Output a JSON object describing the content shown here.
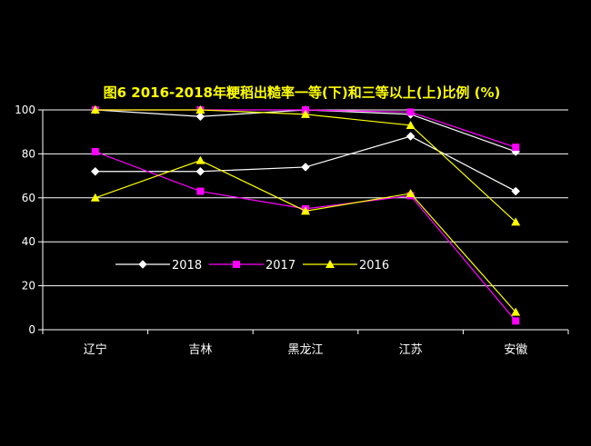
{
  "chart_data": {
    "type": "line",
    "title": "图6  2016-2018年粳稻出糙率一等(下)和三等以上(上)比例 (%)",
    "xlabel": "",
    "ylabel": "",
    "categories": [
      "辽宁",
      "吉林",
      "黑龙江",
      "江苏",
      "安徽"
    ],
    "ylim": [
      0,
      100
    ],
    "yticks": [
      0,
      20,
      40,
      60,
      80,
      100
    ],
    "grid": true,
    "legend_position": "lower-left",
    "series": [
      {
        "name": "2018",
        "color": "#ffffff",
        "marker": "diamond",
        "groups": [
          [
            100,
            97,
            100,
            98,
            81
          ],
          [
            72,
            72,
            74,
            88,
            63
          ]
        ]
      },
      {
        "name": "2017",
        "color": "#ff00ff",
        "marker": "square",
        "groups": [
          [
            100,
            100,
            100,
            99,
            83
          ],
          [
            81,
            63,
            55,
            61,
            4
          ]
        ]
      },
      {
        "name": "2016",
        "color": "#ffff00",
        "marker": "triangle",
        "groups": [
          [
            100,
            100,
            98,
            93,
            49
          ],
          [
            60,
            77,
            54,
            62,
            8
          ]
        ]
      }
    ]
  }
}
